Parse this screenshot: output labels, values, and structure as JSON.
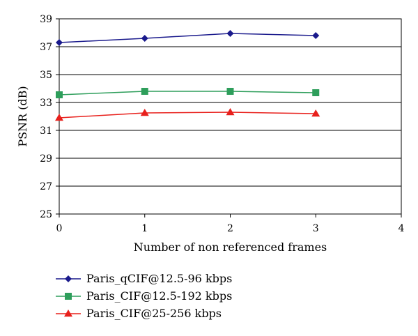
{
  "chart_data": {
    "type": "line",
    "x": [
      0,
      1,
      2,
      3
    ],
    "xlabel": "Number of non referenced frames",
    "ylabel": "PSNR (dB)",
    "xlim": [
      0,
      4
    ],
    "ylim": [
      25,
      39
    ],
    "xticks": [
      "0",
      "1",
      "2",
      "3",
      "4"
    ],
    "yticks": [
      "25",
      "27",
      "29",
      "31",
      "33",
      "35",
      "37",
      "39"
    ],
    "grid": "horizontal",
    "legend_position": "bottom-left",
    "series": [
      {
        "name": "Paris_qCIF@12.5-96 kbps",
        "values": [
          37.3,
          37.6,
          37.95,
          37.8
        ],
        "color": "#1a1a8c",
        "marker": "diamond"
      },
      {
        "name": "Paris_CIF@12.5-192 kbps",
        "values": [
          33.55,
          33.8,
          33.8,
          33.7
        ],
        "color": "#2e9e5b",
        "marker": "square"
      },
      {
        "name": "Paris_CIF@25-256 kbps",
        "values": [
          31.9,
          32.25,
          32.3,
          32.2
        ],
        "color": "#e8201c",
        "marker": "triangle"
      }
    ]
  }
}
